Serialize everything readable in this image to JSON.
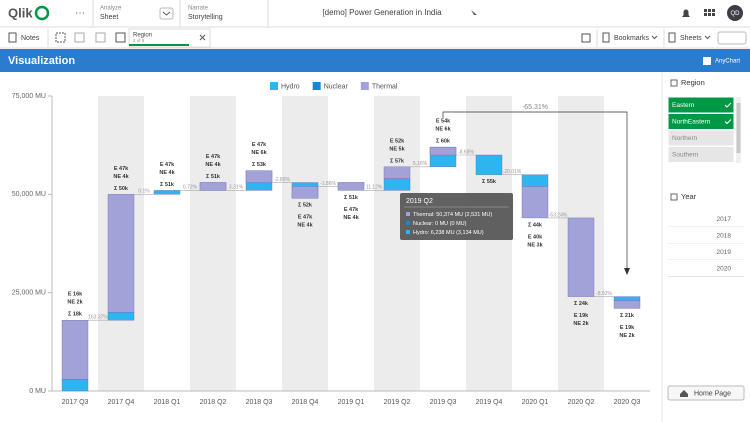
{
  "app_bar": {
    "logo": "Qlik",
    "analyze": "Analyze",
    "sheet": "Sheet",
    "narrate": "Narrate",
    "storytelling": "Storytelling",
    "app_title": "[demo] Power Generation in India",
    "avatar": "QD"
  },
  "toolbar": {
    "notes": "Notes",
    "selection": {
      "field": "Region",
      "count": "2 of 5"
    },
    "bookmarks": "Bookmarks",
    "sheets": "Sheets"
  },
  "sheet_header": {
    "title": "Visualization",
    "brand": "AnyChart"
  },
  "chart_data": {
    "type": "waterfall",
    "categories": [
      "2017 Q3",
      "2017 Q4",
      "2018 Q1",
      "2018 Q2",
      "2018 Q3",
      "2018 Q4",
      "2019 Q1",
      "2019 Q2",
      "2019 Q3",
      "2019 Q4",
      "2020 Q1",
      "2020 Q2",
      "2020 Q3"
    ],
    "series": [
      {
        "name": "Hydro",
        "color": "#2db5f0",
        "values": [
          3000,
          2000,
          1000,
          2000,
          5000,
          -4000,
          1000,
          3000,
          5000,
          -5000,
          -3000,
          0,
          -1000
        ]
      },
      {
        "name": "Nuclear",
        "color": "#1688d2",
        "values": [
          0,
          0,
          0,
          0,
          0,
          0,
          0,
          0,
          0,
          0,
          0,
          0,
          0
        ]
      },
      {
        "name": "Thermal",
        "color": "#a2a2d9",
        "values": [
          15000,
          30000,
          0,
          -2000,
          -3000,
          3000,
          -2000,
          3000,
          -2000,
          0,
          -8000,
          -20000,
          -2000
        ]
      }
    ],
    "labels": [
      [
        "E 16k",
        "NE 2k",
        "Σ 18k"
      ],
      [
        "E 47k",
        "NE 4k",
        "Σ 50k"
      ],
      [
        "E 47k",
        "NE 4k",
        "Σ 51k"
      ],
      [
        "E 47k",
        "NE 4k",
        "Σ 51k"
      ],
      [
        "E 47k",
        "NE 6k",
        "Σ 53k"
      ],
      [
        "Σ 52k",
        "E 47k",
        "NE 4k"
      ],
      [
        "Σ 51k",
        "E 47k",
        "NE 4k"
      ],
      [
        "E 52k",
        "NE 5k",
        "Σ 57k"
      ],
      [
        "E 54k",
        "NE 6k",
        "Σ 60k"
      ],
      [
        "Σ 55k"
      ],
      [
        "Σ 44k",
        "E 40k",
        "NE 3k"
      ],
      [
        "Σ 24k",
        "E 19k",
        "NE 2k"
      ],
      [
        "Σ 21k",
        "E 19k",
        "NE 2k"
      ]
    ],
    "change_labels": [
      "163.37%",
      "0.1%",
      "0.72%",
      "3.31%",
      "-2.86%",
      "-1.86%",
      "11.12%",
      "5.16%",
      "-8.68%",
      "-20.01%",
      "-53.24%",
      "-8.92%"
    ],
    "annotation": "-65.31%",
    "ylim": [
      0,
      75000
    ],
    "yticks": [
      {
        "value": 0,
        "label": "0 MU"
      },
      {
        "value": 25000,
        "label": "25,000 MU"
      },
      {
        "value": 50000,
        "label": "50,000 MU"
      },
      {
        "value": 75000,
        "label": "75,000 MU"
      }
    ],
    "tooltip": {
      "title": "2019 Q2",
      "lines": [
        "Thermal: 50,374 MU (2,531 MU)",
        "Nuclear: 0 MU (0 MU)",
        "Hydro: 6,238 MU (3,134 MU)"
      ]
    }
  },
  "filters": [
    {
      "title": "Region",
      "items": [
        {
          "label": "Eastern",
          "selected": true
        },
        {
          "label": "NorthEastern",
          "selected": true
        },
        {
          "label": "Northern",
          "selected": false
        },
        {
          "label": "Southern",
          "selected": false
        }
      ]
    },
    {
      "title": "Year",
      "items": [
        {
          "label": "2017",
          "selected": false
        },
        {
          "label": "2018",
          "selected": false
        },
        {
          "label": "2019",
          "selected": false
        },
        {
          "label": "2020",
          "selected": false
        }
      ]
    }
  ],
  "home_button": "Home Page"
}
